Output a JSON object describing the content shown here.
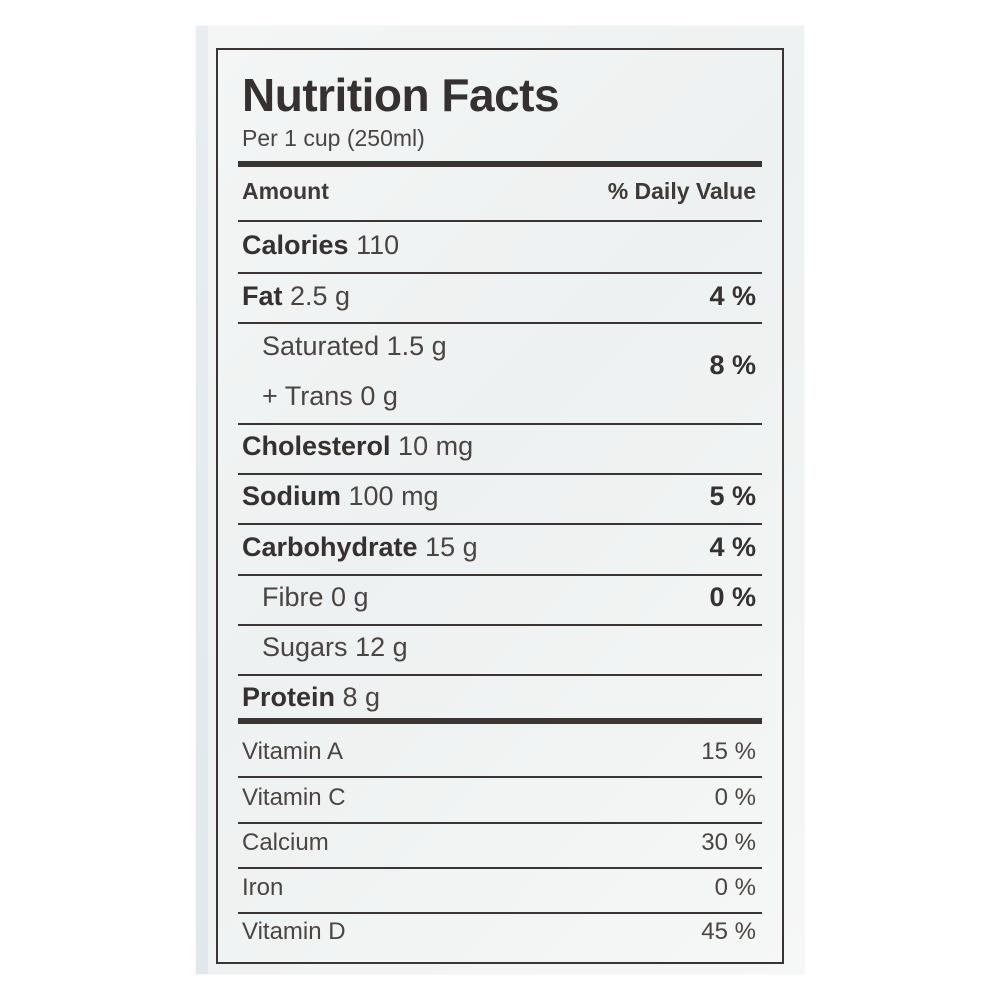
{
  "label": {
    "title": "Nutrition Facts",
    "serving": "Per 1 cup (250ml)",
    "header": {
      "amount": "Amount",
      "daily_value": "% Daily Value"
    },
    "calories": {
      "label": "Calories",
      "value": "110"
    },
    "fat": {
      "label": "Fat",
      "value": "2.5 g",
      "dv": "4 %"
    },
    "saturated": {
      "label": "Saturated",
      "value": "1.5 g"
    },
    "trans": {
      "label": "+ Trans",
      "value": "0 g"
    },
    "saturated_trans_dv": "8 %",
    "cholesterol": {
      "label": "Cholesterol",
      "value": "10 mg"
    },
    "sodium": {
      "label": "Sodium",
      "value": "100 mg",
      "dv": "5 %"
    },
    "carbohydrate": {
      "label": "Carbohydrate",
      "value": "15 g",
      "dv": "4 %"
    },
    "fibre": {
      "label": "Fibre",
      "value": "0 g",
      "dv": "0 %"
    },
    "sugars": {
      "label": "Sugars",
      "value": "12 g"
    },
    "protein": {
      "label": "Protein",
      "value": "8 g"
    },
    "vitamins": [
      {
        "label": "Vitamin A",
        "dv": "15 %"
      },
      {
        "label": "Vitamin C",
        "dv": "0 %"
      },
      {
        "label": "Calcium",
        "dv": "30 %"
      },
      {
        "label": "Iron",
        "dv": "0 %"
      },
      {
        "label": "Vitamin D",
        "dv": "45 %"
      }
    ]
  },
  "colors": {
    "ink": "#3a3532",
    "package": "#f2f4f4",
    "accent": "#b9d3da"
  }
}
